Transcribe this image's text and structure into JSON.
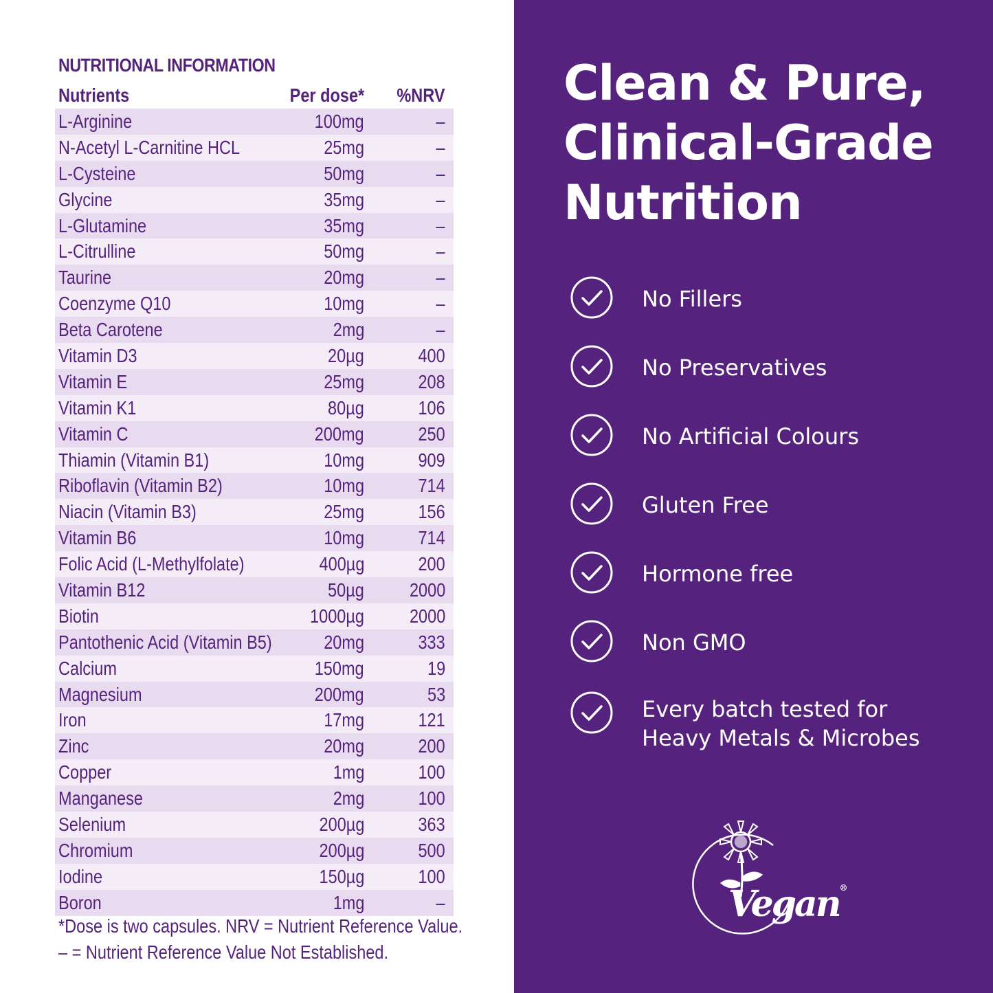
{
  "nutrition": {
    "title": "NUTRITIONAL INFORMATION",
    "headers": {
      "name": "Nutrients",
      "dose": "Per dose*",
      "nrv": "%NRV"
    },
    "rows": [
      {
        "name": "L-Arginine",
        "dose": "100mg",
        "nrv": "–"
      },
      {
        "name": "N-Acetyl L-Carnitine HCL",
        "dose": "25mg",
        "nrv": "–"
      },
      {
        "name": "L-Cysteine",
        "dose": "50mg",
        "nrv": "–"
      },
      {
        "name": "Glycine",
        "dose": "35mg",
        "nrv": "–"
      },
      {
        "name": "L-Glutamine",
        "dose": "35mg",
        "nrv": "–"
      },
      {
        "name": "L-Citrulline",
        "dose": "50mg",
        "nrv": "–"
      },
      {
        "name": "Taurine",
        "dose": "20mg",
        "nrv": "–"
      },
      {
        "name": "Coenzyme Q10",
        "dose": "10mg",
        "nrv": "–"
      },
      {
        "name": "Beta Carotene",
        "dose": "2mg",
        "nrv": "–"
      },
      {
        "name": "Vitamin D3",
        "dose": "20µg",
        "nrv": "400"
      },
      {
        "name": "Vitamin E",
        "dose": "25mg",
        "nrv": "208"
      },
      {
        "name": "Vitamin K1",
        "dose": "80µg",
        "nrv": "106"
      },
      {
        "name": "Vitamin C",
        "dose": "200mg",
        "nrv": "250"
      },
      {
        "name": "Thiamin (Vitamin B1)",
        "dose": "10mg",
        "nrv": "909"
      },
      {
        "name": "Riboflavin (Vitamin B2)",
        "dose": "10mg",
        "nrv": "714"
      },
      {
        "name": "Niacin (Vitamin B3)",
        "dose": "25mg",
        "nrv": "156"
      },
      {
        "name": "Vitamin B6",
        "dose": "10mg",
        "nrv": "714"
      },
      {
        "name": "Folic Acid (L-Methylfolate)",
        "dose": "400µg",
        "nrv": "200"
      },
      {
        "name": "Vitamin B12",
        "dose": "50µg",
        "nrv": "2000"
      },
      {
        "name": "Biotin",
        "dose": "1000µg",
        "nrv": "2000"
      },
      {
        "name": "Pantothenic Acid (Vitamin B5)",
        "dose": "20mg",
        "nrv": "333"
      },
      {
        "name": "Calcium",
        "dose": "150mg",
        "nrv": "19"
      },
      {
        "name": "Magnesium",
        "dose": "200mg",
        "nrv": "53"
      },
      {
        "name": "Iron",
        "dose": "17mg",
        "nrv": "121"
      },
      {
        "name": "Zinc",
        "dose": "20mg",
        "nrv": "200"
      },
      {
        "name": "Copper",
        "dose": "1mg",
        "nrv": "100"
      },
      {
        "name": "Manganese",
        "dose": "2mg",
        "nrv": "100"
      },
      {
        "name": "Selenium",
        "dose": "200µg",
        "nrv": "363"
      },
      {
        "name": "Chromium",
        "dose": "200µg",
        "nrv": "500"
      },
      {
        "name": "Iodine",
        "dose": "150µg",
        "nrv": "100"
      },
      {
        "name": "Boron",
        "dose": "1mg",
        "nrv": "–"
      }
    ],
    "footnote_1": "*Dose is two capsules. NRV = Nutrient Reference Value.",
    "footnote_2": "– = Nutrient Reference Value Not Established."
  },
  "headline": {
    "line_1": "Clean & Pure,",
    "line_2": "Clinical-Grade",
    "line_3": "Nutrition"
  },
  "features": [
    {
      "label": "No Fillers",
      "icon": "check-circle-icon"
    },
    {
      "label": "No Preservatives",
      "icon": "check-circle-icon"
    },
    {
      "label": "No Artificial Colours",
      "icon": "check-circle-icon"
    },
    {
      "label": "Gluten Free",
      "icon": "check-circle-icon"
    },
    {
      "label": "Hormone free",
      "icon": "check-circle-icon"
    },
    {
      "label": "Non GMO",
      "icon": "check-circle-icon"
    },
    {
      "label_line_1": "Every batch tested for",
      "label_line_2": "Heavy Metals & Microbes",
      "icon": "check-circle-icon"
    }
  ],
  "vegan_logo": {
    "text": "Vegan",
    "registered": "®"
  },
  "colors": {
    "brand_purple": "#55237e",
    "row_dark": "#e9dbef",
    "row_light": "#f4edf7",
    "white": "#ffffff"
  }
}
